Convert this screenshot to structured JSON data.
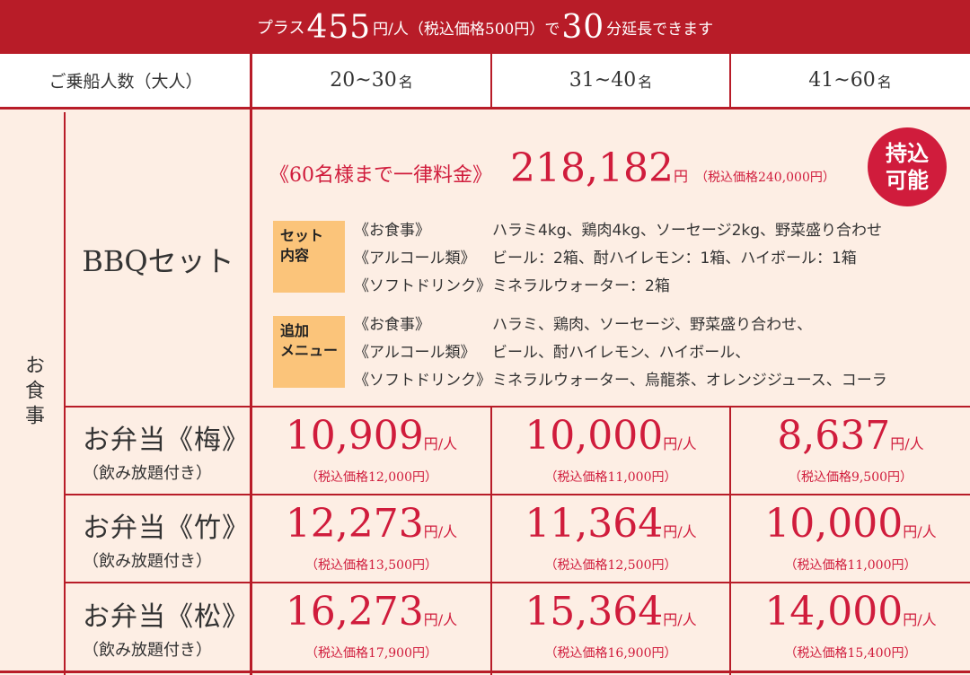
{
  "banner": {
    "pre": "プラス",
    "amount": "455",
    "per": "円/人（税込価格500円）で",
    "minutes": "30",
    "post": "分延長できます"
  },
  "header": {
    "label": "ご乗船人数（大人）",
    "cols": [
      {
        "range": "20~30",
        "unit": "名"
      },
      {
        "range": "31~40",
        "unit": "名"
      },
      {
        "range": "41~60",
        "unit": "名"
      }
    ]
  },
  "section_label": "お食事",
  "bbq": {
    "title": "BBQセット",
    "flat_label": "《60名様まで一律料金》",
    "price": "218,182",
    "unit": "円",
    "tax": "（税込価格240,000円）",
    "badge_line1": "持込",
    "badge_line2": "可能",
    "set": {
      "tag_line1": "セット",
      "tag_line2": "内容",
      "categories": [
        "《お食事》",
        "《アルコール類》",
        "《ソフトドリンク》"
      ],
      "items": [
        "ハラミ4kg、鶏肉4kg、ソーセージ2kg、野菜盛り合わせ",
        "ビール：2箱、酎ハイレモン：1箱、ハイボール：1箱",
        "ミネラルウォーター：2箱"
      ]
    },
    "extra": {
      "tag_line1": "追加",
      "tag_line2": "メニュー",
      "categories": [
        "《お食事》",
        "《アルコール類》",
        "《ソフトドリンク》"
      ],
      "items": [
        "ハラミ、鶏肉、ソーセージ、野菜盛り合わせ、",
        "ビール、酎ハイレモン、ハイボール、",
        "ミネラルウォーター、烏龍茶、オレンジジュース、コーラ"
      ]
    }
  },
  "price_unit": "円/人",
  "rows": [
    {
      "title": "お弁当《梅》",
      "sub": "（飲み放題付き）",
      "prices": [
        {
          "price": "10,909",
          "tax": "（税込価格12,000円）"
        },
        {
          "price": "10,000",
          "tax": "（税込価格11,000円）"
        },
        {
          "price": "8,637",
          "tax": "（税込価格9,500円）"
        }
      ]
    },
    {
      "title": "お弁当《竹》",
      "sub": "（飲み放題付き）",
      "prices": [
        {
          "price": "12,273",
          "tax": "（税込価格13,500円）"
        },
        {
          "price": "11,364",
          "tax": "（税込価格12,500円）"
        },
        {
          "price": "10,000",
          "tax": "（税込価格11,000円）"
        }
      ]
    },
    {
      "title": "お弁当《松》",
      "sub": "（飲み放題付き）",
      "prices": [
        {
          "price": "16,273",
          "tax": "（税込価格17,900円）"
        },
        {
          "price": "15,364",
          "tax": "（税込価格16,900円）"
        },
        {
          "price": "14,000",
          "tax": "（税込価格15,400円）"
        }
      ]
    }
  ]
}
